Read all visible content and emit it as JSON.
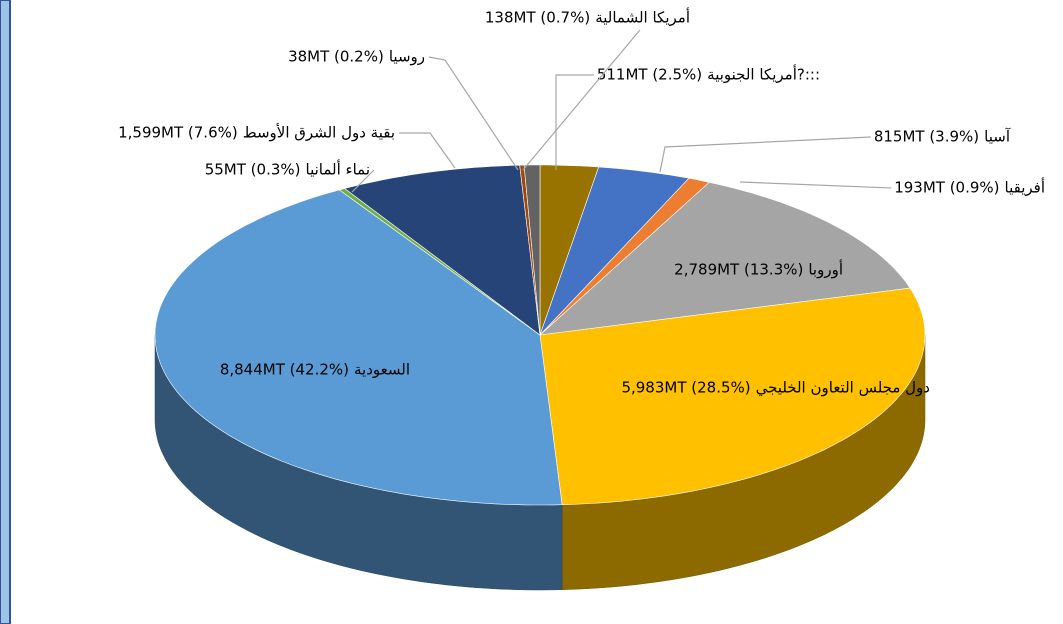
{
  "chart_data": {
    "type": "pie3d",
    "categories": [
      "أمريكا الجنوبية?:::",
      "آسيا",
      "أفريقيا",
      "أوروبا",
      "دول مجلس التعاون الخليجي",
      "السعودية",
      "نماء ألمانيا",
      "بقية دول الشرق الأوسط",
      "روسيا",
      "أمريكا الشمالية"
    ],
    "values": [
      511,
      815,
      193,
      2789,
      5983,
      8844,
      55,
      1599,
      38,
      138
    ],
    "value_labels": [
      "511MT (2.5%)",
      "815MT (3.9%)",
      "193MT (0.9%)",
      "2,789MT (13.3%)",
      "5,983MT (28.5%)",
      "8,844MT (42.2%)",
      "55MT (0.3%)",
      "1,599MT (7.6%)",
      "38MT (0.2%)",
      "138MT (0.7%)"
    ],
    "colors": [
      "#997300",
      "#4472c4",
      "#ed7d31",
      "#a5a5a5",
      "#ffc000",
      "#5b9bd5",
      "#70ad47",
      "#264478",
      "#9e480e",
      "#636363"
    ]
  }
}
